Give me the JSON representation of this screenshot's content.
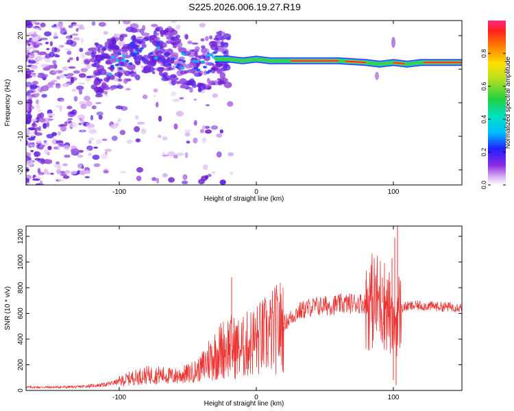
{
  "title": "S225.2026.006.19.27.R19",
  "chart_data": [
    {
      "type": "heatmap",
      "name": "spectrogram",
      "xlabel": "Height of straight line (km)",
      "ylabel": "Frequency (Hz)",
      "xlim": [
        -168,
        150
      ],
      "ylim": [
        -24.5,
        24.5
      ],
      "xticks": [
        -100,
        0,
        100
      ],
      "yticks": [
        -20,
        -10,
        0,
        10,
        20
      ],
      "colorbar": {
        "label": "Normalized spectral amplitude",
        "range": [
          0,
          1
        ],
        "ticks": [
          0.0,
          0.2,
          0.4,
          0.6,
          0.8
        ],
        "tick_labels": [
          "0.0",
          "0.2",
          "0.4",
          "0.6",
          "0.8"
        ]
      },
      "carrier_track": {
        "description": "frequency of the main spectral line vs height",
        "x": [
          -115,
          -100,
          -90,
          -80,
          -70,
          -60,
          -50,
          -40,
          -30,
          -20,
          -10,
          0,
          10,
          20,
          40,
          60,
          80,
          90,
          100,
          110,
          120,
          150
        ],
        "freq": [
          9,
          12,
          15,
          16,
          15,
          14,
          12,
          11,
          13,
          13,
          12.5,
          13,
          12.5,
          12.5,
          12.5,
          12.5,
          12,
          11.5,
          12,
          11.5,
          12,
          12
        ]
      }
    },
    {
      "type": "line",
      "name": "snr",
      "xlabel": "Height of straight line (km)",
      "ylabel": "SNR (10 * v/v)",
      "xlim": [
        -168,
        150
      ],
      "ylim": [
        0,
        1280
      ],
      "xticks": [
        -100,
        0,
        100
      ],
      "yticks": [
        0,
        200,
        400,
        600,
        800,
        1000,
        1200
      ],
      "series": [
        {
          "name": "SNR",
          "color": "#ee3333",
          "x": [
            -168,
            -150,
            -130,
            -110,
            -100,
            -90,
            -80,
            -70,
            -60,
            -50,
            -40,
            -35,
            -30,
            -25,
            -20,
            -15,
            -10,
            -5,
            0,
            10,
            20,
            30,
            40,
            50,
            60,
            70,
            80,
            85,
            90,
            95,
            98,
            100,
            102,
            104,
            106,
            110,
            120,
            130,
            140,
            150
          ],
          "y": [
            25,
            25,
            28,
            45,
            70,
            100,
            120,
            120,
            110,
            130,
            170,
            240,
            280,
            320,
            350,
            330,
            330,
            370,
            390,
            440,
            520,
            610,
            650,
            660,
            670,
            680,
            680,
            700,
            700,
            660,
            550,
            420,
            560,
            610,
            640,
            655,
            660,
            655,
            650,
            650
          ]
        }
      ],
      "spikes": {
        "x": [
          -18,
          80,
          92,
          95,
          97,
          99,
          100,
          101,
          102,
          103
        ],
        "y": [
          880,
          860,
          880,
          780,
          920,
          1030,
          80,
          1190,
          40,
          1280
        ]
      }
    }
  ]
}
